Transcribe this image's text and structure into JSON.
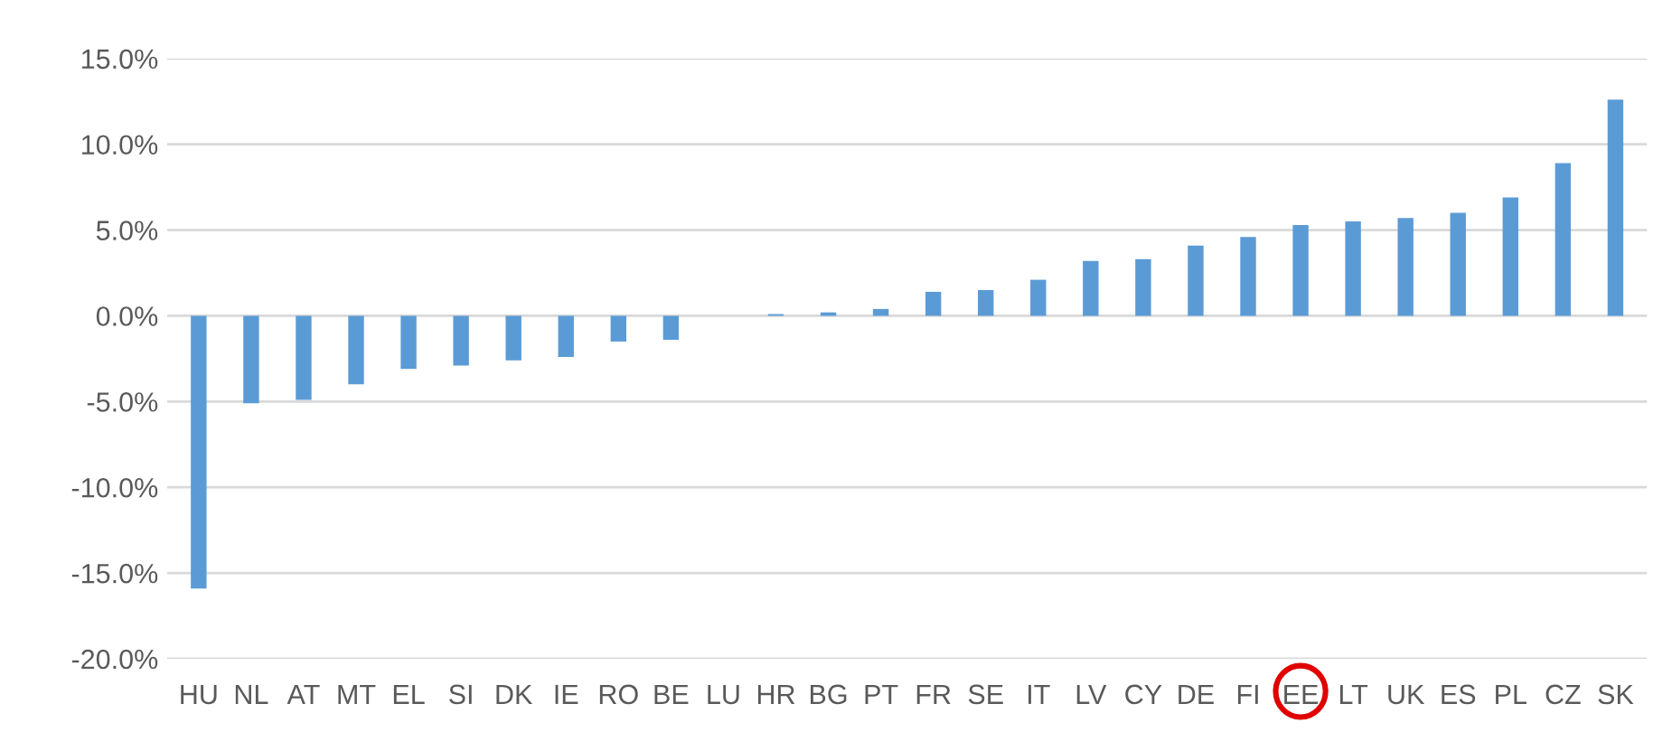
{
  "chart_data": {
    "type": "bar",
    "categories": [
      "HU",
      "NL",
      "AT",
      "MT",
      "EL",
      "SI",
      "DK",
      "IE",
      "RO",
      "BE",
      "LU",
      "HR",
      "BG",
      "PT",
      "FR",
      "SE",
      "IT",
      "LV",
      "CY",
      "DE",
      "FI",
      "EE",
      "LT",
      "UK",
      "ES",
      "PL",
      "CZ",
      "SK"
    ],
    "values": [
      -15.9,
      -5.1,
      -4.9,
      -4.0,
      -3.1,
      -2.9,
      -2.6,
      -2.4,
      -1.5,
      -1.4,
      0.0,
      0.1,
      0.2,
      0.4,
      1.4,
      1.5,
      2.1,
      3.2,
      3.3,
      4.1,
      4.6,
      5.3,
      5.5,
      5.7,
      6.0,
      6.9,
      8.9,
      12.6
    ],
    "color": "#5b9bd5",
    "ylim": [
      -20,
      15
    ],
    "yticks": [
      {
        "value": -20,
        "label": "-20.0%"
      },
      {
        "value": -15,
        "label": "-15.0%"
      },
      {
        "value": -10,
        "label": "-10.0%"
      },
      {
        "value": -5,
        "label": "-5.0%"
      },
      {
        "value": 0,
        "label": "0.0%"
      },
      {
        "value": 5,
        "label": "5.0%"
      },
      {
        "value": 10,
        "label": "10.0%"
      },
      {
        "value": 15,
        "label": "15.0%"
      }
    ],
    "grid": "y",
    "legend": false
  }
}
